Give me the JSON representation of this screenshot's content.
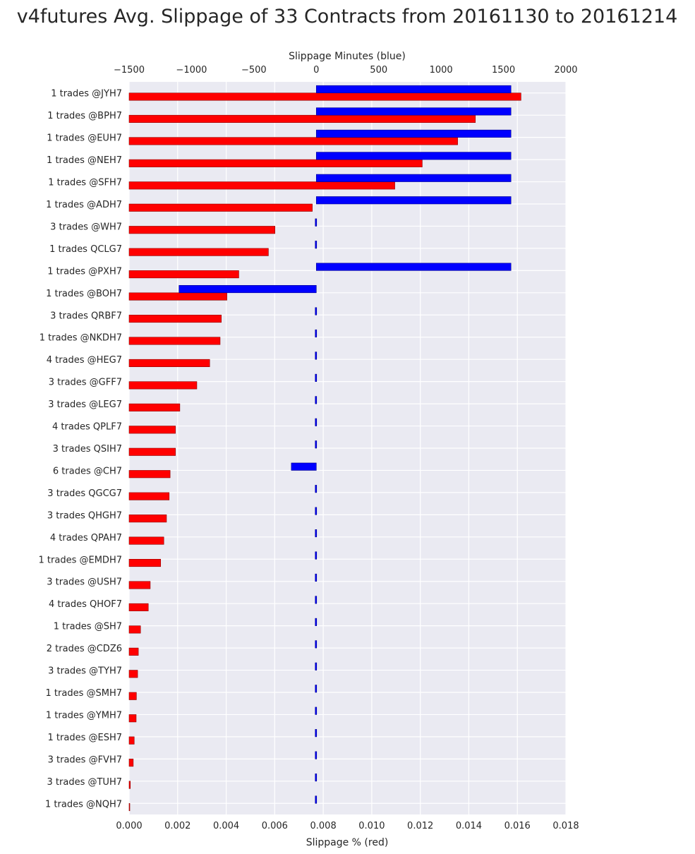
{
  "chart_data": {
    "type": "bar",
    "title": "v4futures Avg. Slippage of 33 Contracts from 20161130 to 20161214",
    "xlabel_bottom": "Slippage % (red)",
    "xlabel_top": "Slippage Minutes (blue)",
    "bottom_xlim": [
      0,
      0.018
    ],
    "bottom_ticks": [
      "0.000",
      "0.002",
      "0.004",
      "0.006",
      "0.008",
      "0.010",
      "0.012",
      "0.014",
      "0.016",
      "0.018"
    ],
    "top_xlim": [
      -1500,
      2000
    ],
    "top_ticks": [
      "−1500",
      "−1000",
      "−500",
      "0",
      "500",
      "1000",
      "1500",
      "2000"
    ],
    "grid": true,
    "colors": {
      "slippage_pct": "#ff0000",
      "slippage_minutes": "#0000ff",
      "background": "#eaeaf2"
    },
    "categories": [
      "1 trades @JYH7",
      "1 trades @BPH7",
      "1 trades @EUH7",
      "1 trades @NEH7",
      "1 trades @SFH7",
      "1 trades @ADH7",
      "3 trades @WH7",
      "1 trades QCLG7",
      "1 trades @PXH7",
      "1 trades @BOH7",
      "3 trades QRBF7",
      "1 trades @NKDH7",
      "4 trades @HEG7",
      "3 trades @GFF7",
      "3 trades @LEG7",
      "4 trades QPLF7",
      "3 trades QSIH7",
      "6 trades @CH7",
      "3 trades QGCG7",
      "3 trades QHGH7",
      "4 trades QPAH7",
      "1 trades @EMDH7",
      "3 trades @USH7",
      "4 trades QHOF7",
      "1 trades @SH7",
      "2 trades @CDZ6",
      "3 trades @TYH7",
      "1 trades @SMH7",
      "1 trades @YMH7",
      "1 trades @ESH7",
      "3 trades @FVH7",
      "3 trades @TUH7",
      "1 trades @NQH7"
    ],
    "series": [
      {
        "name": "Slippage % (red)",
        "axis": "bottom",
        "values": [
          0.01615,
          0.01427,
          0.01354,
          0.01208,
          0.01095,
          0.00755,
          0.00601,
          0.00574,
          0.00452,
          0.00403,
          0.0038,
          0.00375,
          0.00332,
          0.00279,
          0.00209,
          0.00191,
          0.00191,
          0.00169,
          0.00165,
          0.00154,
          0.00143,
          0.0013,
          0.00087,
          0.00079,
          0.00047,
          0.00038,
          0.00035,
          0.0003,
          0.00029,
          0.00021,
          0.00017,
          5e-05,
          1e-05
        ]
      },
      {
        "name": "Slippage Minutes (blue)",
        "axis": "top",
        "values": [
          1560,
          1560,
          1560,
          1560,
          1560,
          1560,
          -5,
          -5,
          1560,
          -1100,
          -3,
          -3,
          -5,
          -5,
          -5,
          -3,
          -5,
          -200,
          -3,
          -3,
          -3,
          -5,
          -5,
          -5,
          -3,
          -3,
          -3,
          -3,
          -5,
          -5,
          -3,
          -3,
          -5
        ]
      }
    ]
  }
}
